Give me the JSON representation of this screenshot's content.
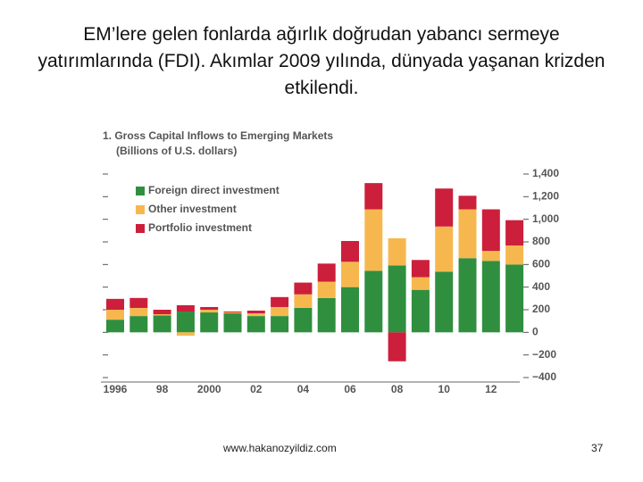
{
  "slide": {
    "title": "EM’lere gelen fonlarda ağırlık doğrudan yabancı sermeye yatırımlarında (FDI). Akımlar 2009 yılında, dünyada yaşanan krizden etkilendi.",
    "footer": "www.hakanozyildiz.com",
    "page_number": 37
  },
  "chart_data": {
    "type": "bar",
    "stacked": true,
    "title": "1. Gross Capital Inflows to Emerging Markets",
    "subtitle": "(Billions of U.S. dollars)",
    "categories": [
      "1996",
      null,
      "98",
      null,
      "2000",
      null,
      "02",
      null,
      "04",
      null,
      "06",
      null,
      "08",
      null,
      "10",
      null,
      "12",
      null
    ],
    "series": [
      {
        "name": "Foreign direct investment",
        "color": "#2f8f3f",
        "values": [
          112,
          144,
          150,
          184,
          176,
          168,
          144,
          144,
          216,
          304,
          400,
          544,
          592,
          376,
          536,
          656,
          632,
          600
        ]
      },
      {
        "name": "Other investment",
        "color": "#f6b84e",
        "values": [
          88,
          72,
          10,
          -30,
          24,
          8,
          24,
          80,
          120,
          144,
          224,
          544,
          240,
          112,
          400,
          432,
          88,
          168
        ]
      },
      {
        "name": "Portfolio investment",
        "color": "#cc1f3c",
        "values": [
          96,
          88,
          40,
          56,
          24,
          8,
          24,
          88,
          104,
          160,
          184,
          232,
          -256,
          152,
          336,
          120,
          368,
          224
        ]
      }
    ],
    "ylim": [
      -400,
      1400
    ],
    "yticks": [
      {
        "value": -400,
        "label": "−400"
      },
      {
        "value": -200,
        "label": "−200"
      },
      0,
      200,
      400,
      600,
      800,
      {
        "value": 1000,
        "label": "1,000"
      },
      {
        "value": 1200,
        "label": "1,200"
      },
      {
        "value": 1400,
        "label": "1,400"
      }
    ],
    "legend": "upper-left",
    "grid": false
  }
}
